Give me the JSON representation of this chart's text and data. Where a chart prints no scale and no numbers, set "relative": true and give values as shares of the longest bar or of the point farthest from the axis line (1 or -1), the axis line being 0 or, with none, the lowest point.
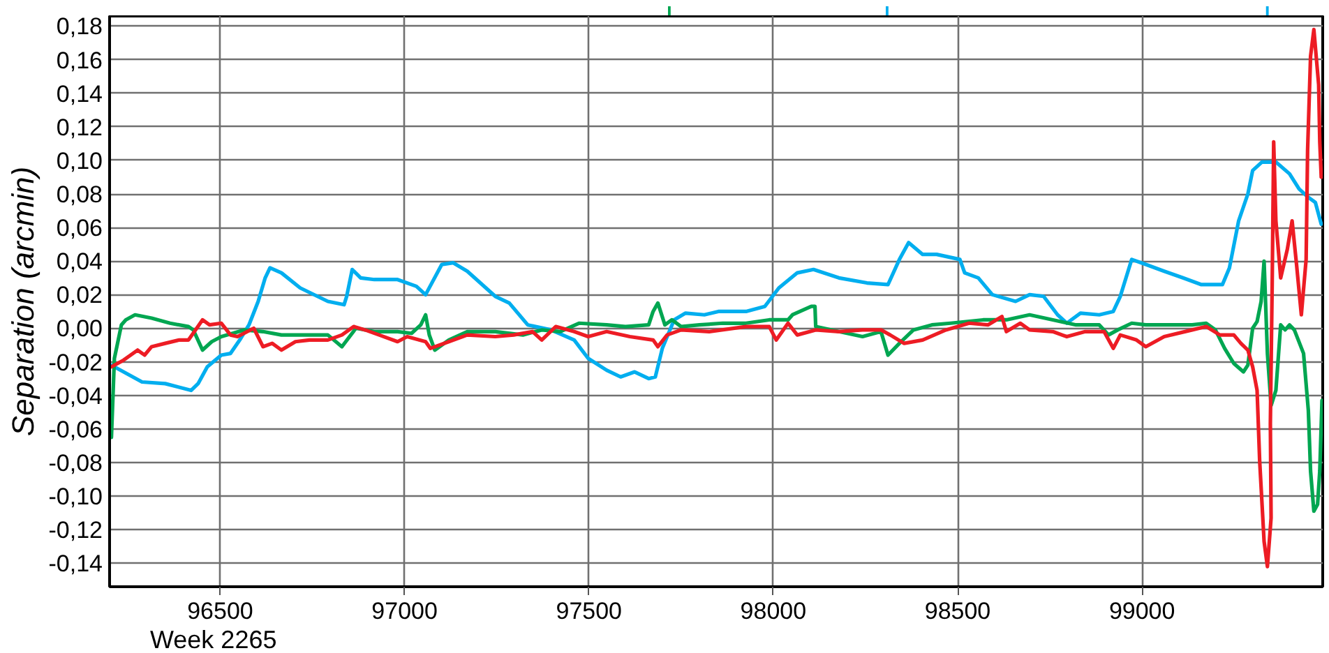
{
  "chart_data": [
    {
      "type": "bar",
      "relative": true,
      "tick_labels": false,
      "xlim": [
        96200,
        99490
      ],
      "series": [
        {
          "color": "#00a651",
          "x": [
            97720
          ],
          "values": [
            1
          ]
        },
        {
          "color": "#00aeef",
          "x": [
            98310,
            99340
          ],
          "values": [
            1,
            1
          ]
        }
      ]
    },
    {
      "type": "line",
      "xlabel": "Week 2265",
      "ylabel": "Separation (arcmin)",
      "xlim": [
        96200,
        99490
      ],
      "ylim": [
        -0.154,
        0.186
      ],
      "xticks": [
        96500,
        97000,
        97500,
        98000,
        98500,
        99000
      ],
      "yticks": [
        {
          "value": 0.18,
          "label": "0,18"
        },
        {
          "value": 0.16,
          "label": "0,16"
        },
        {
          "value": 0.14,
          "label": "0,14"
        },
        {
          "value": 0.12,
          "label": "0,12"
        },
        {
          "value": 0.1,
          "label": "0,10"
        },
        {
          "value": 0.08,
          "label": "0,08"
        },
        {
          "value": 0.06,
          "label": "0,06"
        },
        {
          "value": 0.04,
          "label": "0,04"
        },
        {
          "value": 0.02,
          "label": "0,02"
        },
        {
          "value": 0,
          "label": "0,00"
        },
        {
          "value": -0.02,
          "label": "-0,02"
        },
        {
          "value": -0.04,
          "label": "-0,04"
        },
        {
          "value": -0.06,
          "label": "-0,06"
        },
        {
          "value": -0.08,
          "label": "-0,08"
        },
        {
          "value": -0.1,
          "label": "-0,10"
        },
        {
          "value": -0.12,
          "label": "-0,12"
        },
        {
          "value": -0.14,
          "label": "-0,14"
        }
      ],
      "grid": true,
      "series": [
        {
          "color": "#00aeef",
          "x": [
            96205,
            96288,
            96351,
            96421,
            96440,
            96465,
            96503,
            96528,
            96553,
            96578,
            96603,
            96622,
            96635,
            96666,
            96717,
            96792,
            96836,
            96843,
            96858,
            96881,
            96918,
            96981,
            97032,
            97057,
            97101,
            97132,
            97170,
            97246,
            97284,
            97334,
            97397,
            97460,
            97498,
            97548,
            97586,
            97624,
            97662,
            97680,
            97699,
            97731,
            97762,
            97813,
            97851,
            97926,
            97977,
            98015,
            98065,
            98109,
            98178,
            98254,
            98311,
            98342,
            98367,
            98405,
            98443,
            98506,
            98519,
            98556,
            98594,
            98657,
            98695,
            98733,
            98771,
            98796,
            98833,
            98884,
            98922,
            98941,
            98972,
            99010,
            99060,
            99111,
            99161,
            99218,
            99237,
            99262,
            99287,
            99300,
            99325,
            99363,
            99400,
            99426,
            99451,
            99470,
            99486
          ],
          "values": [
            -0.022,
            -0.032,
            -0.033,
            -0.037,
            -0.033,
            -0.023,
            -0.016,
            -0.015,
            -0.007,
            0.002,
            0.016,
            0.03,
            0.036,
            0.033,
            0.024,
            0.016,
            0.014,
            0.019,
            0.035,
            0.03,
            0.029,
            0.029,
            0.025,
            0.02,
            0.038,
            0.039,
            0.034,
            0.019,
            0.015,
            0.002,
            -0.001,
            -0.007,
            -0.018,
            -0.025,
            -0.029,
            -0.026,
            -0.03,
            -0.029,
            -0.012,
            0.005,
            0.009,
            0.008,
            0.01,
            0.01,
            0.013,
            0.024,
            0.033,
            0.035,
            0.03,
            0.027,
            0.026,
            0.041,
            0.051,
            0.044,
            0.044,
            0.041,
            0.033,
            0.03,
            0.02,
            0.016,
            0.02,
            0.019,
            0.008,
            0.003,
            0.009,
            0.008,
            0.01,
            0.019,
            0.041,
            0.038,
            0.034,
            0.03,
            0.026,
            0.026,
            0.036,
            0.064,
            0.08,
            0.094,
            0.099,
            0.099,
            0.092,
            0.083,
            0.078,
            0.075,
            0.062
          ]
        },
        {
          "color": "#00a651",
          "x": [
            96205,
            96213,
            96232,
            96244,
            96269,
            96314,
            96364,
            96414,
            96427,
            96452,
            96477,
            96503,
            96565,
            96616,
            96666,
            96729,
            96792,
            96830,
            96868,
            96918,
            96981,
            97019,
            97044,
            97057,
            97067,
            97082,
            97120,
            97170,
            97246,
            97321,
            97372,
            97422,
            97473,
            97548,
            97599,
            97662,
            97674,
            97687,
            97706,
            97725,
            97750,
            97800,
            97863,
            97926,
            97989,
            98040,
            98052,
            98103,
            98113,
            98115,
            98178,
            98242,
            98292,
            98311,
            98342,
            98380,
            98430,
            98481,
            98569,
            98632,
            98695,
            98758,
            98821,
            98884,
            98909,
            98934,
            98972,
            99010,
            99073,
            99136,
            99174,
            99199,
            99224,
            99249,
            99275,
            99287,
            99300,
            99312,
            99323,
            99331,
            99340,
            99350,
            99363,
            99376,
            99388,
            99400,
            99413,
            99438,
            99451,
            99457,
            99466,
            99476,
            99482,
            99488
          ],
          "values": [
            -0.065,
            -0.018,
            0.002,
            0.005,
            0.008,
            0.006,
            0.003,
            0.001,
            -0.001,
            -0.013,
            -0.008,
            -0.005,
            -0.001,
            -0.002,
            -0.004,
            -0.004,
            -0.004,
            -0.011,
            0,
            -0.002,
            -0.002,
            -0.003,
            0.002,
            0.008,
            -0.004,
            -0.013,
            -0.007,
            -0.002,
            -0.002,
            -0.004,
            -0.001,
            -0.002,
            0.003,
            0.002,
            0.001,
            0.002,
            0.01,
            0.015,
            0.002,
            0.005,
            0.001,
            0.002,
            0.003,
            0.003,
            0.005,
            0.005,
            0.008,
            0.013,
            0.013,
            0.001,
            -0.002,
            -0.005,
            -0.002,
            -0.016,
            -0.009,
            -0.001,
            0.002,
            0.003,
            0.005,
            0.005,
            0.008,
            0.005,
            0.002,
            0.002,
            -0.004,
            -0.001,
            0.003,
            0.002,
            0.002,
            0.002,
            0.003,
            -0.001,
            -0.012,
            -0.021,
            -0.026,
            -0.022,
            0,
            0.004,
            0.016,
            0.04,
            -0.015,
            -0.046,
            -0.037,
            0.002,
            -0.001,
            0.002,
            -0.001,
            -0.015,
            -0.049,
            -0.085,
            -0.109,
            -0.105,
            -0.085,
            -0.043
          ]
        },
        {
          "color": "#ed1c24",
          "x": [
            96205,
            96238,
            96276,
            96295,
            96314,
            96351,
            96389,
            96414,
            96433,
            96452,
            96471,
            96503,
            96528,
            96547,
            96591,
            96616,
            96641,
            96666,
            96704,
            96742,
            96792,
            96830,
            96862,
            96893,
            96931,
            96981,
            97007,
            97057,
            97070,
            97120,
            97170,
            97246,
            97296,
            97347,
            97372,
            97410,
            97460,
            97498,
            97548,
            97611,
            97674,
            97687,
            97712,
            97750,
            97826,
            97926,
            97989,
            98008,
            98040,
            98065,
            98115,
            98178,
            98242,
            98292,
            98317,
            98355,
            98405,
            98468,
            98531,
            98582,
            98620,
            98632,
            98670,
            98695,
            98758,
            98796,
            98846,
            98897,
            98922,
            98941,
            98985,
            99010,
            99060,
            99136,
            99174,
            99211,
            99249,
            99268,
            99287,
            99300,
            99312,
            99319,
            99331,
            99340,
            99350,
            99348,
            99353,
            99357,
            99363,
            99376,
            99394,
            99407,
            99419,
            99432,
            99445,
            99449,
            99457,
            99466,
            99479,
            99482,
            99486
          ],
          "values": [
            -0.023,
            -0.019,
            -0.013,
            -0.016,
            -0.011,
            -0.009,
            -0.007,
            -0.007,
            -0.001,
            0.005,
            0.002,
            0.003,
            -0.004,
            -0.005,
            0,
            -0.011,
            -0.009,
            -0.013,
            -0.008,
            -0.007,
            -0.007,
            -0.004,
            0.001,
            -0.001,
            -0.004,
            -0.008,
            -0.005,
            -0.008,
            -0.012,
            -0.008,
            -0.004,
            -0.005,
            -0.004,
            -0.002,
            -0.007,
            0.001,
            -0.002,
            -0.005,
            -0.002,
            -0.005,
            -0.007,
            -0.011,
            -0.004,
            -0.001,
            -0.002,
            0.001,
            0.001,
            -0.007,
            0.003,
            -0.004,
            -0.001,
            -0.002,
            -0.001,
            -0.001,
            -0.004,
            -0.009,
            -0.007,
            -0.001,
            0.003,
            0.002,
            0.007,
            -0.002,
            0.003,
            -0.001,
            -0.002,
            -0.005,
            -0.002,
            -0.002,
            -0.012,
            -0.004,
            -0.007,
            -0.011,
            -0.005,
            -0.001,
            0.001,
            -0.004,
            -0.004,
            -0.009,
            -0.013,
            -0.023,
            -0.037,
            -0.079,
            -0.127,
            -0.142,
            -0.113,
            -0.057,
            0.027,
            0.111,
            0.064,
            0.03,
            0.047,
            0.064,
            0.038,
            0.008,
            0.041,
            0.106,
            0.162,
            0.178,
            0.145,
            0.111,
            0.09
          ]
        }
      ]
    }
  ]
}
